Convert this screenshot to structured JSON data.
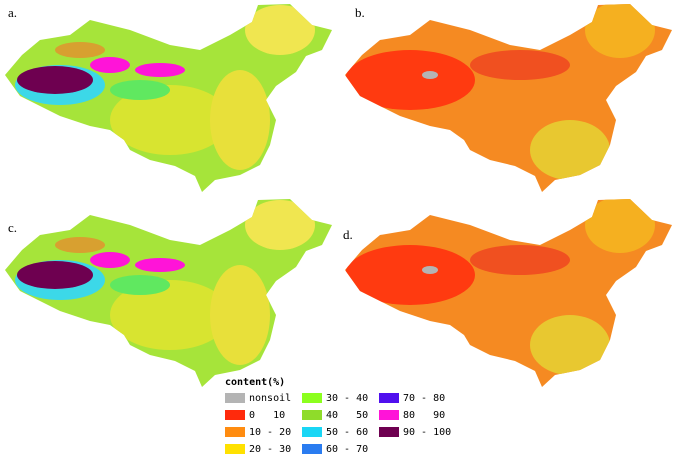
{
  "panels": [
    {
      "label": "a."
    },
    {
      "label": "b."
    },
    {
      "label": "c."
    },
    {
      "label": "d."
    }
  ],
  "legend": {
    "title": "content(%)",
    "items": [
      {
        "label": "nonsoil",
        "color": "#b4b4b4"
      },
      {
        "label": "0   10",
        "color": "#ff2a0c"
      },
      {
        "label": "10 - 20",
        "color": "#ff8c10"
      },
      {
        "label": "20 - 30",
        "color": "#ffe100"
      },
      {
        "label": "30 - 40",
        "color": "#8cff1e"
      },
      {
        "label": "40   50",
        "color": "#8fdc2a"
      },
      {
        "label": "50 - 60",
        "color": "#19d6f5"
      },
      {
        "label": "60 - 70",
        "color": "#2a7cf0"
      },
      {
        "label": "70 - 80",
        "color": "#5010ee"
      },
      {
        "label": "80   90",
        "color": "#ff14d8"
      },
      {
        "label": "90 - 100",
        "color": "#6e0050"
      }
    ]
  }
}
